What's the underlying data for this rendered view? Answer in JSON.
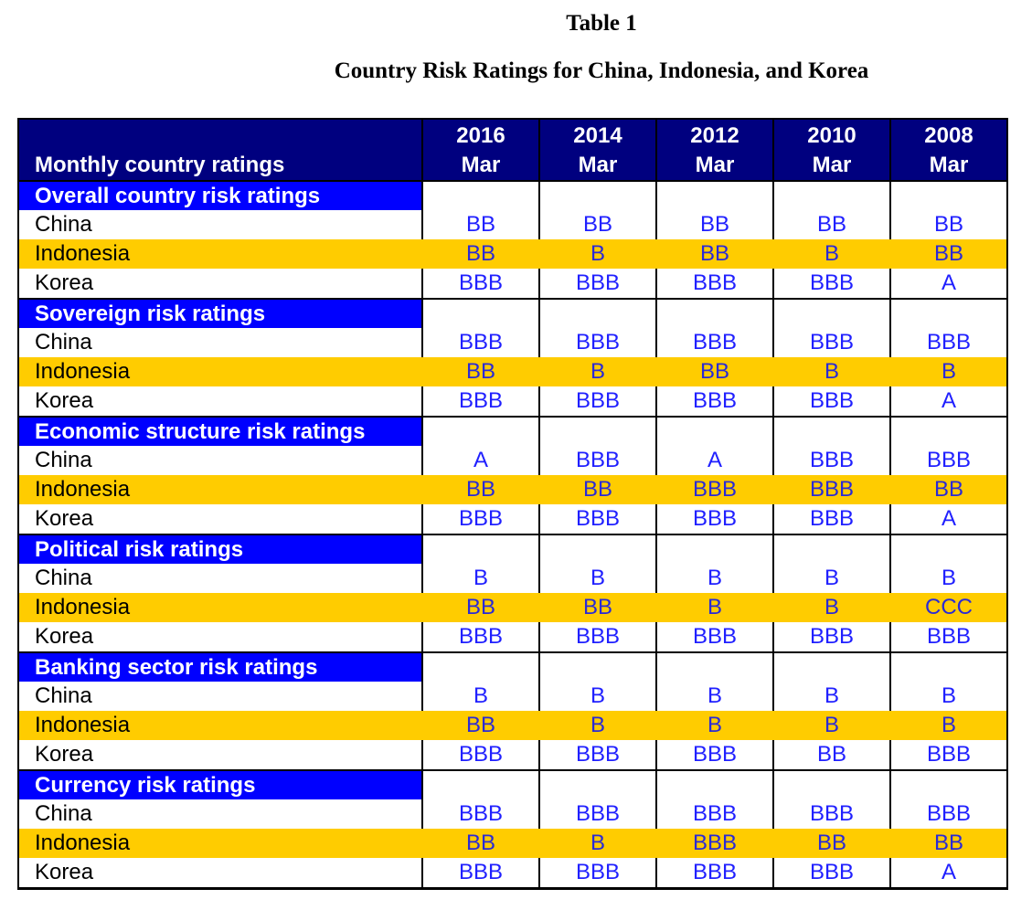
{
  "caption": {
    "number": "Table 1",
    "title": "Country Risk Ratings for China, Indonesia, and Korea"
  },
  "header": {
    "label": "Monthly country ratings",
    "columns": [
      {
        "year": "2016",
        "month": "Mar"
      },
      {
        "year": "2014",
        "month": "Mar"
      },
      {
        "year": "2012",
        "month": "Mar"
      },
      {
        "year": "2010",
        "month": "Mar"
      },
      {
        "year": "2008",
        "month": "Mar"
      }
    ]
  },
  "sections": [
    {
      "title": "Overall country risk ratings",
      "rows": [
        {
          "country": "China",
          "ratings": [
            "BB",
            "BB",
            "BB",
            "BB",
            "BB"
          ]
        },
        {
          "country": "Indonesia",
          "ratings": [
            "BB",
            "B",
            "BB",
            "B",
            "BB"
          ]
        },
        {
          "country": "Korea",
          "ratings": [
            "BBB",
            "BBB",
            "BBB",
            "BBB",
            "A"
          ]
        }
      ]
    },
    {
      "title": "Sovereign risk ratings",
      "rows": [
        {
          "country": "China",
          "ratings": [
            "BBB",
            "BBB",
            "BBB",
            "BBB",
            "BBB"
          ]
        },
        {
          "country": "Indonesia",
          "ratings": [
            "BB",
            "B",
            "BB",
            "B",
            "B"
          ]
        },
        {
          "country": "Korea",
          "ratings": [
            "BBB",
            "BBB",
            "BBB",
            "BBB",
            "A"
          ]
        }
      ]
    },
    {
      "title": "Economic structure risk ratings",
      "rows": [
        {
          "country": "China",
          "ratings": [
            "A",
            "BBB",
            "A",
            "BBB",
            "BBB"
          ]
        },
        {
          "country": "Indonesia",
          "ratings": [
            "BB",
            "BB",
            "BBB",
            "BBB",
            "BB"
          ]
        },
        {
          "country": "Korea",
          "ratings": [
            "BBB",
            "BBB",
            "BBB",
            "BBB",
            "A"
          ]
        }
      ]
    },
    {
      "title": "Political risk ratings",
      "rows": [
        {
          "country": "China",
          "ratings": [
            "B",
            "B",
            "B",
            "B",
            "B"
          ]
        },
        {
          "country": "Indonesia",
          "ratings": [
            "BB",
            "BB",
            "B",
            "B",
            "CCC"
          ]
        },
        {
          "country": "Korea",
          "ratings": [
            "BBB",
            "BBB",
            "BBB",
            "BBB",
            "BBB"
          ]
        }
      ]
    },
    {
      "title": "Banking sector risk ratings",
      "rows": [
        {
          "country": "China",
          "ratings": [
            "B",
            "B",
            "B",
            "B",
            "B"
          ]
        },
        {
          "country": "Indonesia",
          "ratings": [
            "BB",
            "B",
            "B",
            "B",
            "B"
          ]
        },
        {
          "country": "Korea",
          "ratings": [
            "BBB",
            "BBB",
            "BBB",
            "BB",
            "BBB"
          ]
        }
      ]
    },
    {
      "title": "Currency risk ratings",
      "rows": [
        {
          "country": "China",
          "ratings": [
            "BBB",
            "BBB",
            "BBB",
            "BBB",
            "BBB"
          ]
        },
        {
          "country": "Indonesia",
          "ratings": [
            "BB",
            "B",
            "BBB",
            "BB",
            "BB"
          ]
        },
        {
          "country": "Korea",
          "ratings": [
            "BBB",
            "BBB",
            "BBB",
            "BBB",
            "A"
          ]
        }
      ]
    }
  ],
  "colors": {
    "header_bg": "#00007f",
    "section_bg": "#0000ff",
    "alt_row_bg": "#ffcc00",
    "rating_text": "#2020ff"
  }
}
